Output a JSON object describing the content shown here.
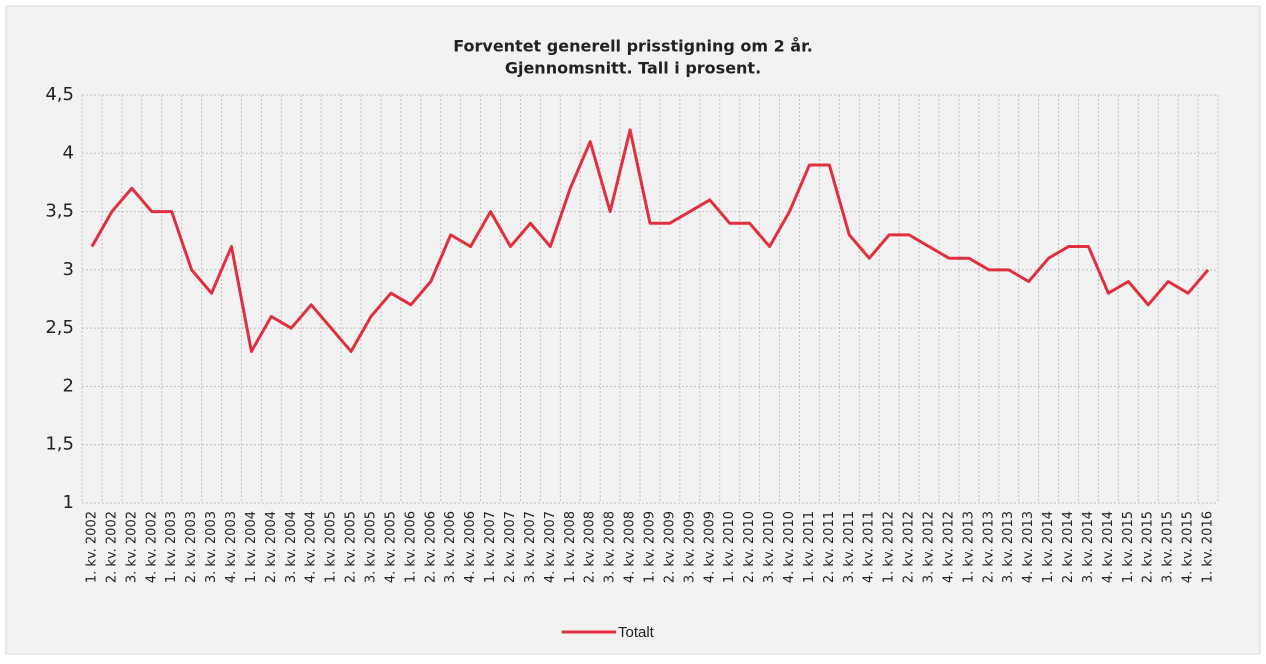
{
  "chart_data": {
    "type": "line",
    "title": "Forventet generell prisstigning om 2 år.",
    "subtitle": "Gjennomsnitt. Tall i prosent.",
    "categories": [
      "1. kv. 2002",
      "2. kv. 2002",
      "3. kv. 2002",
      "4. kv. 2002",
      "1. kv. 2003",
      "2. kv. 2003",
      "3. kv. 2003",
      "4. kv. 2003",
      "1. kv. 2004",
      "2. kv. 2004",
      "3. kv. 2004",
      "4. kv. 2004",
      "1. kv. 2005",
      "2. kv. 2005",
      "3. kv. 2005",
      "4. kv. 2005",
      "1. kv. 2006",
      "2. kv. 2006",
      "3. kv. 2006",
      "4. kv. 2006",
      "1. kv. 2007",
      "2. kv. 2007",
      "3. kv. 2007",
      "4. kv. 2007",
      "1. kv. 2008",
      "2. kv. 2008",
      "3. kv. 2008",
      "4. kv. 2008",
      "1. kv. 2009",
      "2. kv. 2009",
      "3. kv. 2009",
      "4. kv. 2009",
      "1. kv. 2010",
      "2. kv. 2010",
      "3. kv. 2010",
      "4. kv. 2010",
      "1. kv. 2011",
      "2. kv. 2011",
      "3. kv. 2011",
      "4. kv. 2011",
      "1. kv. 2012",
      "2. kv. 2012",
      "3. kv. 2012",
      "4. kv. 2012",
      "1. kv. 2013",
      "2. kv. 2013",
      "3. kv. 2013",
      "4. kv. 2013",
      "1. kv. 2014",
      "2. kv. 2014",
      "3. kv. 2014",
      "4. kv. 2014",
      "1. kv. 2015",
      "2. kv. 2015",
      "3. kv. 2015",
      "4. kv. 2015",
      "1. kv. 2016"
    ],
    "series": [
      {
        "name": "Totalt",
        "color": "#e0303f",
        "values": [
          3.2,
          3.5,
          3.7,
          3.5,
          3.5,
          3.0,
          2.8,
          3.2,
          2.3,
          2.6,
          2.5,
          2.7,
          2.5,
          2.3,
          2.6,
          2.8,
          2.7,
          2.9,
          3.3,
          3.2,
          3.5,
          3.2,
          3.4,
          3.2,
          3.7,
          4.1,
          3.5,
          4.2,
          3.4,
          3.4,
          3.5,
          3.6,
          3.4,
          3.4,
          3.2,
          3.5,
          3.9,
          3.9,
          3.3,
          3.1,
          3.3,
          3.3,
          3.2,
          3.1,
          3.1,
          3.0,
          3.0,
          2.9,
          3.1,
          3.2,
          3.2,
          2.8,
          2.9,
          2.7,
          2.9,
          2.8,
          3.0
        ]
      }
    ],
    "ylim": [
      1,
      4.5
    ],
    "yticks": [
      1,
      {
        "value": 1.5,
        "label": "1,5"
      },
      2,
      {
        "value": 2.5,
        "label": "2,5"
      },
      3,
      {
        "value": 3.5,
        "label": "3,5"
      },
      4,
      {
        "value": 4.5,
        "label": "4,5"
      }
    ],
    "grid": true,
    "legend": "bottom"
  }
}
